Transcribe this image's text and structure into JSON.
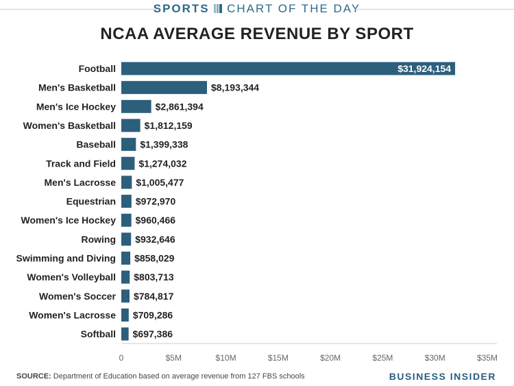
{
  "header": {
    "kicker_bold": "SPORTS",
    "kicker": "CHART OF THE DAY"
  },
  "chart_data": {
    "type": "bar",
    "orientation": "horizontal",
    "title": "NCAA AVERAGE REVENUE BY SPORT",
    "categories": [
      "Football",
      "Men's Basketball",
      "Men's Ice Hockey",
      "Women's Basketball",
      "Baseball",
      "Track and Field",
      "Men's Lacrosse",
      "Equestrian",
      "Women's Ice Hockey",
      "Rowing",
      "Swimming and Diving",
      "Women's Volleyball",
      "Women's Soccer",
      "Women's Lacrosse",
      "Softball"
    ],
    "values": [
      31924154,
      8193344,
      2861394,
      1812159,
      1399338,
      1274032,
      1005477,
      972970,
      960466,
      932646,
      858029,
      803713,
      784817,
      709286,
      697386
    ],
    "data_labels": [
      "$31,924,154",
      "$8,193,344",
      "$2,861,394",
      "$1,812,159",
      "$1,399,338",
      "$1,274,032",
      "$1,005,477",
      "$972,970",
      "$960,466",
      "$932,646",
      "$858,029",
      "$803,713",
      "$784,817",
      "$709,286",
      "$697,386"
    ],
    "xlim": [
      0,
      35000000
    ],
    "xticks": [
      0,
      5000000,
      10000000,
      15000000,
      20000000,
      25000000,
      30000000,
      35000000
    ],
    "xtick_labels": [
      "0",
      "$5M",
      "$10M",
      "$15M",
      "$20M",
      "$25M",
      "$30M",
      "$35M"
    ],
    "grid": false,
    "bar_color": "#2c5f7c"
  },
  "footer": {
    "source_label": "SOURCE:",
    "source": " Department of Education based on average revenue from 127 FBS schools",
    "brand": "BUSINESS INSIDER"
  }
}
